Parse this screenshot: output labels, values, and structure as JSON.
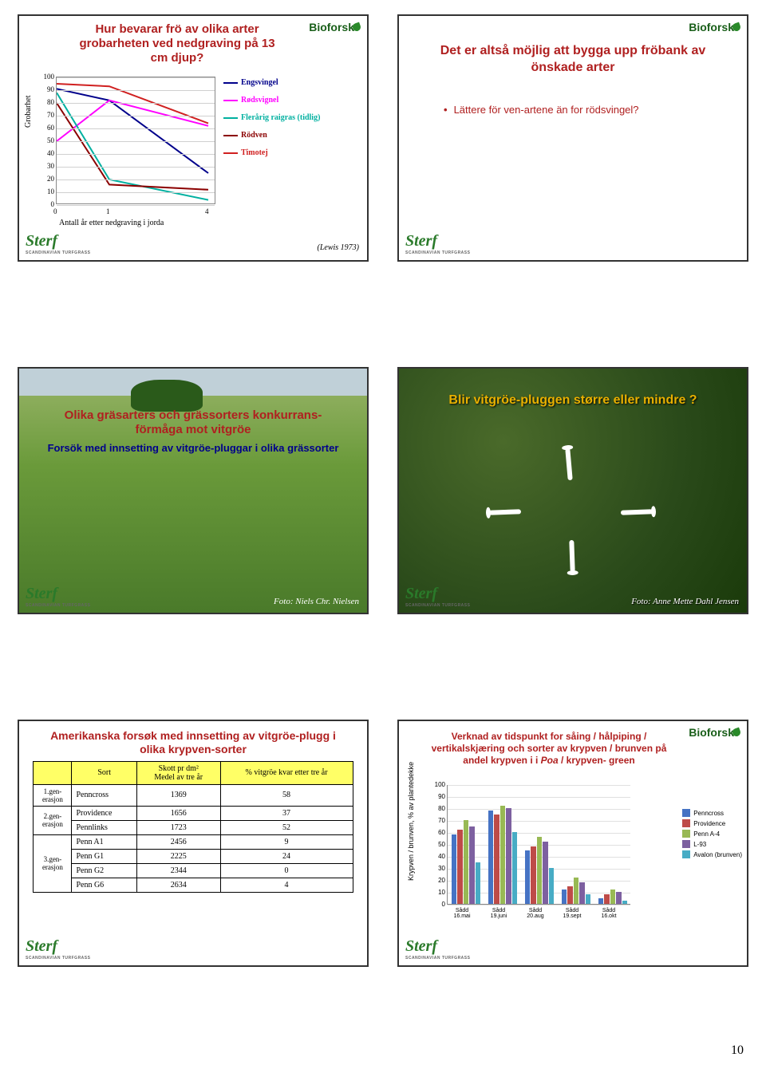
{
  "page_number": "10",
  "logos": {
    "bioforsk": "Bioforsk",
    "sterf": "Sterf",
    "sterf_sub": "SCANDINAVIAN TURFGRASS"
  },
  "s1_chart": {
    "type": "line",
    "title": "Hur bevarar frö av olika arter grobarheten ved nedgraving på 13 cm djup?",
    "ylabel": "Grobarhet",
    "xlabel": "Antall år etter nedgraving i jorda",
    "ylim": [
      0,
      100
    ],
    "ytick_step": 10,
    "xvals": [
      0,
      1,
      4
    ],
    "series": [
      {
        "name": "Engsvingel",
        "color": "#00008b",
        "y": [
          91,
          82,
          25
        ]
      },
      {
        "name": "Rødsvignel",
        "color": "#ff00ff",
        "y": [
          50,
          82,
          62
        ]
      },
      {
        "name": "Flerårig raigras (tidlig)",
        "color": "#00b0a0",
        "y": [
          88,
          20,
          4
        ]
      },
      {
        "name": "Rödven",
        "color": "#8b0000",
        "y": [
          80,
          16,
          12
        ]
      },
      {
        "name": "Timotej",
        "color": "#d02020",
        "y": [
          95,
          93,
          64
        ]
      }
    ],
    "cite": "(Lewis 1973)",
    "background_color": "#ffffff",
    "grid_color": "#d0d0d0",
    "line_width": 2,
    "title_color": "#b02020",
    "title_fontsize": 15
  },
  "s2": {
    "title": "Det er altså möjlig att bygga upp fröbank av önskade arter",
    "bullet": "Lättere för ven-artene än for rödsvingel?"
  },
  "s3": {
    "title": "Olika gräsarters och grässorters konkurrans-förmåga mot vitgröe",
    "subtitle": "Forsök med innsetting av vitgröe-pluggar i olika grässorter",
    "photo_credit": "Foto: Niels Chr. Nielsen"
  },
  "s4": {
    "title": "Blir vitgröe-pluggen større eller mindre ?",
    "photo_credit": "Foto: Anne Mette Dahl Jensen"
  },
  "s5_table": {
    "title": "Amerikanska forsøk med innsetting av vitgröe-plugg i olika krypven-sorter",
    "columns": [
      "Sort",
      "Skott pr dm²\nMedel av tre år",
      "% vitgröe kvar etter tre år"
    ],
    "groups": [
      {
        "label": "1.gen-\nerasjon",
        "rows": [
          [
            "Penncross",
            "1369",
            "58"
          ]
        ]
      },
      {
        "label": "2.gen-\nerasjon",
        "rows": [
          [
            "Providence",
            "1656",
            "37"
          ],
          [
            "Pennlinks",
            "1723",
            "52"
          ]
        ]
      },
      {
        "label": "3.gen-\nerasjon",
        "rows": [
          [
            "Penn A1",
            "2456",
            "9"
          ],
          [
            "Penn G1",
            "2225",
            "24"
          ],
          [
            "Penn G2",
            "2344",
            "0"
          ],
          [
            "Penn G6",
            "2634",
            "4"
          ]
        ]
      }
    ],
    "header_bg": "#ffff66"
  },
  "s6_chart": {
    "type": "bar",
    "title_pre": "Verknad av tidspunkt for såing / hålpiping / vertikalskjæring och sorter av krypven / brunven på andel krypven i i ",
    "title_em": "Poa",
    "title_post": " / krypven- green",
    "ylabel": "Krypven / brunven, % av plantedekke",
    "ylim": [
      0,
      100
    ],
    "ytick_step": 10,
    "categories": [
      "Sådd\n16.mai",
      "Sådd\n19.juni",
      "Sådd\n20.aug",
      "Sådd\n19.sept",
      "Sådd\n16.okt"
    ],
    "series": [
      {
        "name": "Penncross",
        "color": "#4673c4",
        "y": [
          58,
          78,
          45,
          12,
          5
        ]
      },
      {
        "name": "Providence",
        "color": "#be4b48",
        "y": [
          62,
          75,
          48,
          15,
          8
        ]
      },
      {
        "name": "Penn A-4",
        "color": "#98b954",
        "y": [
          70,
          82,
          56,
          22,
          12
        ]
      },
      {
        "name": "L-93",
        "color": "#7d60a0",
        "y": [
          65,
          80,
          52,
          18,
          10
        ]
      },
      {
        "name": "Avalon (brunven)",
        "color": "#47acc5",
        "y": [
          35,
          60,
          30,
          8,
          3
        ]
      }
    ],
    "background_color": "#ffffff",
    "grid_color": "#e0e0e0",
    "bar_gap": 1
  }
}
